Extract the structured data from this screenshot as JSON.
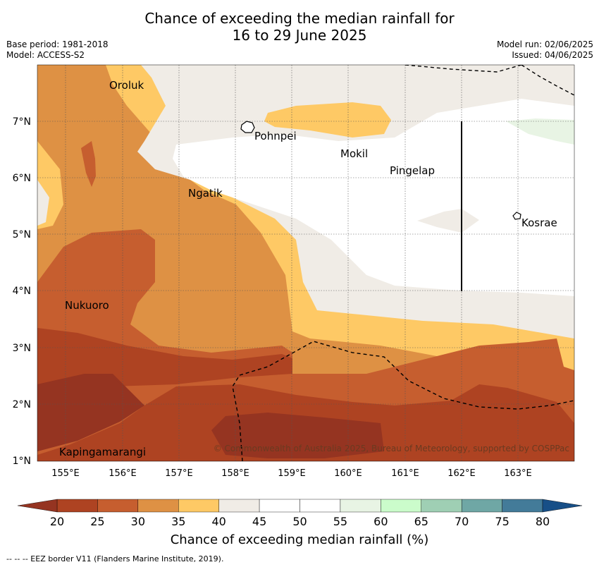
{
  "title": {
    "line1": "Chance of exceeding the median rainfall for",
    "line2": "16 to 29 June 2025"
  },
  "info": {
    "base_period": "Base period: 1981-2018",
    "model": "Model: ACCESS-S2",
    "model_run": "Model run: 02/06/2025",
    "issued": "Issued: 04/06/2025"
  },
  "map": {
    "lon_ticks": [
      "155°E",
      "156°E",
      "157°E",
      "158°E",
      "159°E",
      "160°E",
      "161°E",
      "162°E",
      "163°E"
    ],
    "lat_ticks": [
      "7°N",
      "6°N",
      "5°N",
      "4°N",
      "3°N",
      "2°N",
      "1°N"
    ],
    "places": [
      "Oroluk",
      "Pohnpei",
      "Mokil",
      "Pingelap",
      "Ngatik",
      "Kosrae",
      "Nukuoro",
      "Kapingamarangi"
    ],
    "copyright": "© Commonwealth of Australia 2025, Bureau of Meteorology, supported by COSPPac"
  },
  "colorbar": {
    "title": "Chance of exceeding median rainfall (%)",
    "ticks": [
      "20",
      "25",
      "30",
      "35",
      "40",
      "45",
      "50",
      "55",
      "60",
      "65",
      "70",
      "75",
      "80"
    ],
    "colors": [
      "#ae4322",
      "#c65e2f",
      "#de9144",
      "#fec965",
      "#f0ece6",
      "#ffffff",
      "#ffffff",
      "#e8f4e4",
      "#cbfccb",
      "#9fcfb4",
      "#6fa7a5",
      "#437b99",
      "#1c5a8c"
    ],
    "under_color": "#953421",
    "over_color": "#174f87"
  },
  "footnote": "-- -- -- EEZ border V11 (Flanders Marine Institute, 2019)."
}
